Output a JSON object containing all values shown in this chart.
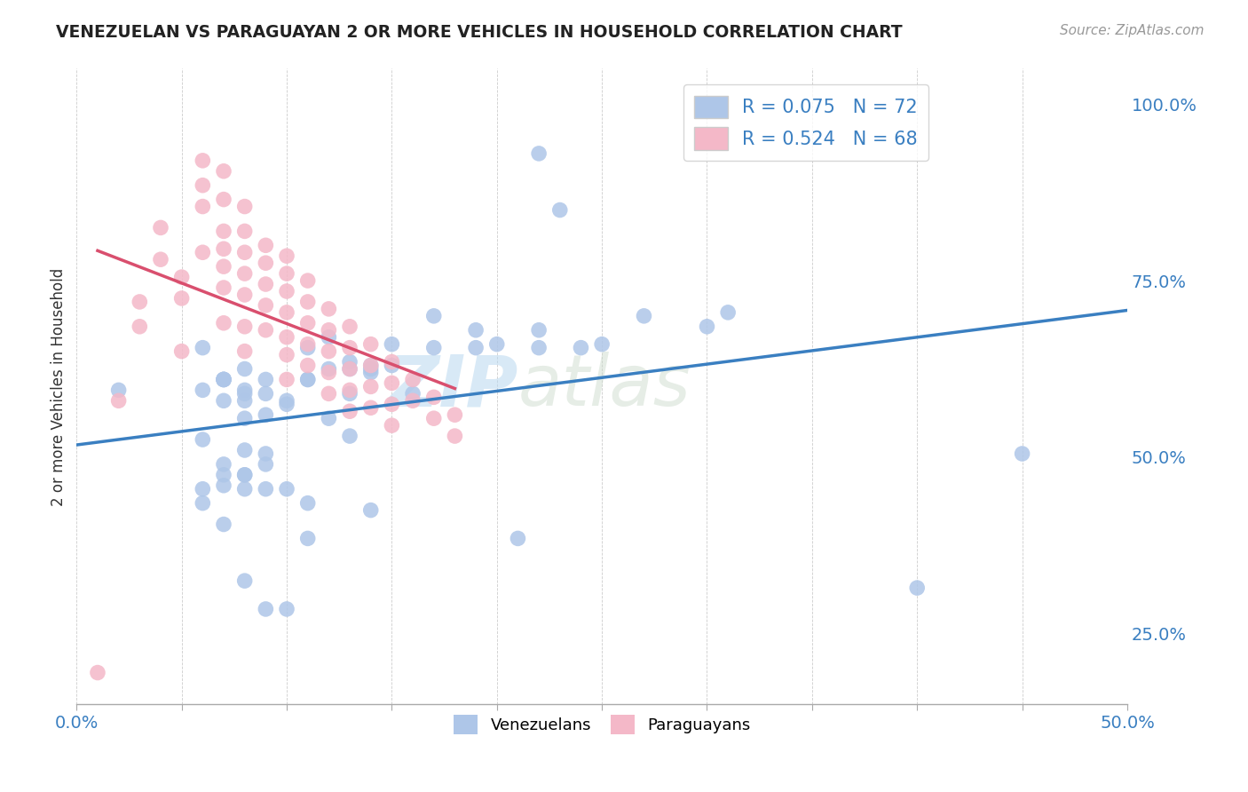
{
  "title": "VENEZUELAN VS PARAGUAYAN 2 OR MORE VEHICLES IN HOUSEHOLD CORRELATION CHART",
  "source": "Source: ZipAtlas.com",
  "ylabel": "2 or more Vehicles in Household",
  "xlim": [
    0.0,
    0.5
  ],
  "ylim": [
    0.15,
    1.05
  ],
  "xticks": [
    0.0,
    0.05,
    0.1,
    0.15,
    0.2,
    0.25,
    0.3,
    0.35,
    0.4,
    0.45,
    0.5
  ],
  "yticks_right": [
    0.25,
    0.5,
    0.75,
    1.0
  ],
  "ytick_labels_right": [
    "25.0%",
    "50.0%",
    "75.0%",
    "100.0%"
  ],
  "venezuelan_R": 0.075,
  "venezuelan_N": 72,
  "paraguayan_R": 0.524,
  "paraguayan_N": 68,
  "blue_color": "#aec6e8",
  "blue_line_color": "#3a7fc1",
  "pink_color": "#f4b8c8",
  "pink_line_color": "#d94f6e",
  "watermark": "ZIPatlas",
  "venezuelan_x": [
    0.02,
    0.22,
    0.27,
    0.06,
    0.08,
    0.13,
    0.14,
    0.08,
    0.11,
    0.09,
    0.08,
    0.07,
    0.15,
    0.1,
    0.09,
    0.1,
    0.12,
    0.19,
    0.08,
    0.2,
    0.22,
    0.07,
    0.09,
    0.06,
    0.17,
    0.13,
    0.11,
    0.14,
    0.15,
    0.08,
    0.25,
    0.31,
    0.13,
    0.07,
    0.06,
    0.19,
    0.11,
    0.14,
    0.3,
    0.17,
    0.23,
    0.08,
    0.12,
    0.07,
    0.09,
    0.07,
    0.1,
    0.08,
    0.09,
    0.07,
    0.16,
    0.1,
    0.45,
    0.4,
    0.21,
    0.07,
    0.12,
    0.06,
    0.14,
    0.11,
    0.08,
    0.07,
    0.09,
    0.08,
    0.06,
    0.24,
    0.22,
    0.08,
    0.09,
    0.11,
    0.13,
    0.07
  ],
  "venezuelan_y": [
    0.595,
    0.93,
    0.7,
    0.595,
    0.595,
    0.635,
    0.62,
    0.58,
    0.61,
    0.61,
    0.625,
    0.61,
    0.66,
    0.58,
    0.59,
    0.575,
    0.67,
    0.655,
    0.51,
    0.66,
    0.68,
    0.61,
    0.56,
    0.655,
    0.7,
    0.625,
    0.655,
    0.625,
    0.63,
    0.475,
    0.66,
    0.705,
    0.53,
    0.61,
    0.525,
    0.68,
    0.61,
    0.63,
    0.685,
    0.655,
    0.85,
    0.59,
    0.625,
    0.49,
    0.49,
    0.46,
    0.455,
    0.555,
    0.455,
    0.61,
    0.59,
    0.285,
    0.505,
    0.315,
    0.385,
    0.405,
    0.555,
    0.455,
    0.425,
    0.435,
    0.455,
    0.475,
    0.505,
    0.475,
    0.435,
    0.655,
    0.655,
    0.325,
    0.285,
    0.385,
    0.59,
    0.58
  ],
  "paraguayan_x": [
    0.01,
    0.02,
    0.03,
    0.03,
    0.04,
    0.04,
    0.05,
    0.05,
    0.05,
    0.06,
    0.06,
    0.06,
    0.06,
    0.07,
    0.07,
    0.07,
    0.07,
    0.07,
    0.07,
    0.07,
    0.08,
    0.08,
    0.08,
    0.08,
    0.08,
    0.08,
    0.08,
    0.09,
    0.09,
    0.09,
    0.09,
    0.09,
    0.1,
    0.1,
    0.1,
    0.1,
    0.1,
    0.1,
    0.1,
    0.11,
    0.11,
    0.11,
    0.11,
    0.11,
    0.12,
    0.12,
    0.12,
    0.12,
    0.12,
    0.13,
    0.13,
    0.13,
    0.13,
    0.13,
    0.14,
    0.14,
    0.14,
    0.14,
    0.15,
    0.15,
    0.15,
    0.15,
    0.16,
    0.16,
    0.17,
    0.17,
    0.18,
    0.18
  ],
  "paraguayan_y": [
    0.195,
    0.58,
    0.685,
    0.72,
    0.78,
    0.825,
    0.755,
    0.725,
    0.65,
    0.885,
    0.92,
    0.79,
    0.855,
    0.905,
    0.865,
    0.82,
    0.795,
    0.77,
    0.74,
    0.69,
    0.855,
    0.82,
    0.79,
    0.76,
    0.73,
    0.685,
    0.65,
    0.8,
    0.775,
    0.745,
    0.715,
    0.68,
    0.785,
    0.76,
    0.735,
    0.705,
    0.67,
    0.645,
    0.61,
    0.75,
    0.72,
    0.69,
    0.66,
    0.63,
    0.71,
    0.68,
    0.65,
    0.62,
    0.59,
    0.685,
    0.655,
    0.625,
    0.595,
    0.565,
    0.66,
    0.63,
    0.6,
    0.57,
    0.635,
    0.605,
    0.575,
    0.545,
    0.61,
    0.58,
    0.585,
    0.555,
    0.56,
    0.53
  ]
}
